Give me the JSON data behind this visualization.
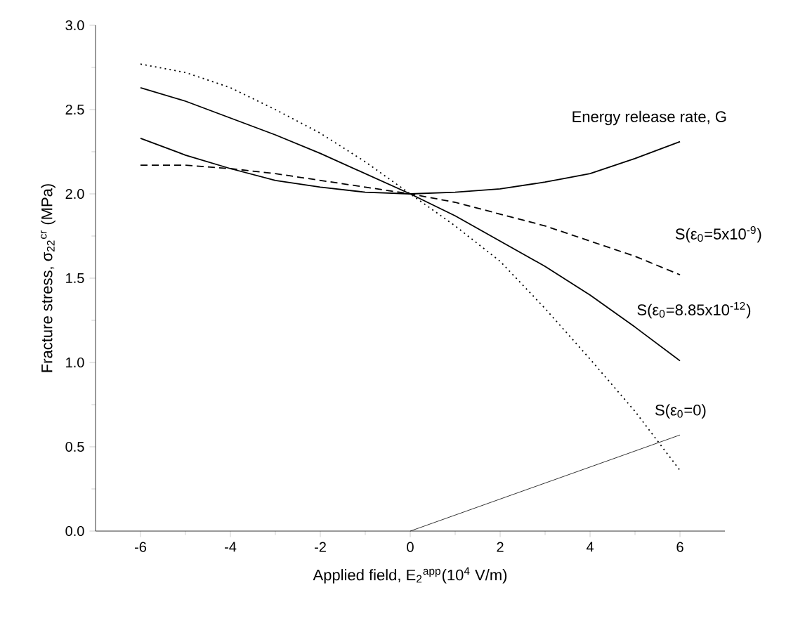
{
  "chart_data": {
    "type": "line",
    "xlabel": "Applied field, E$_{2}$$^{app}$(10$^{4}$ V/m)",
    "ylabel": "Fracture stress,  σ$_{22}$$^{cr}$ (MPa)",
    "xlim": [
      -7,
      7
    ],
    "ylim": [
      0,
      3
    ],
    "xticks": [
      -6,
      -4,
      -2,
      0,
      2,
      4,
      6
    ],
    "yticks": [
      {
        "value": 0,
        "label": "0.0"
      },
      {
        "value": 0.5,
        "label": "0.5"
      },
      {
        "value": 1,
        "label": "1.0"
      },
      {
        "value": 1.5,
        "label": "1.5"
      },
      {
        "value": 2,
        "label": "2.0"
      },
      {
        "value": 2.5,
        "label": "2.5"
      },
      {
        "value": 3,
        "label": "3.0"
      }
    ],
    "grid": false,
    "marker": "none",
    "series": [
      {
        "name": "Energy release rate, G",
        "color": "#000000",
        "line_style": "solid",
        "x": [
          -6,
          -5,
          -4,
          -3,
          -2,
          -1,
          0,
          1,
          2,
          3,
          4,
          5,
          6
        ],
        "values": [
          2.33,
          2.23,
          2.15,
          2.08,
          2.04,
          2.01,
          2.0,
          2.01,
          2.03,
          2.07,
          2.12,
          2.21,
          2.31
        ]
      },
      {
        "name": "S(ε$_{0}$=5x10$^{-9}$)",
        "color": "#000000",
        "line_style": "dashed",
        "x": [
          -6,
          -5,
          -4,
          -3,
          -2,
          -1,
          0,
          1,
          2,
          3,
          4,
          5,
          6
        ],
        "values": [
          2.17,
          2.17,
          2.15,
          2.12,
          2.08,
          2.04,
          2.0,
          1.95,
          1.88,
          1.81,
          1.72,
          1.63,
          1.52
        ]
      },
      {
        "name": "S(ε$_{0}$=8.85x10$^{-12}$)",
        "color": "#000000",
        "line_style": "solid",
        "x": [
          -6,
          -5,
          -4,
          -3,
          -2,
          -1,
          0,
          1,
          2,
          3,
          4,
          5,
          6
        ],
        "values": [
          2.63,
          2.55,
          2.45,
          2.35,
          2.24,
          2.12,
          2.0,
          1.87,
          1.72,
          1.57,
          1.4,
          1.21,
          1.01
        ]
      },
      {
        "name": "S(ε$_{0}$=0)",
        "color": "#000000",
        "line_style": "dotted",
        "x": [
          -6,
          -5,
          -4,
          -3,
          -2,
          -1,
          0,
          1,
          2,
          3,
          4,
          5,
          6
        ],
        "values": [
          2.77,
          2.72,
          2.63,
          2.5,
          2.36,
          2.19,
          2.0,
          1.81,
          1.6,
          1.32,
          1.02,
          0.71,
          0.36
        ]
      },
      {
        "color": "#000000",
        "line_style": "solid",
        "x": [
          0,
          6
        ],
        "values": [
          0,
          0.57
        ]
      }
    ]
  }
}
